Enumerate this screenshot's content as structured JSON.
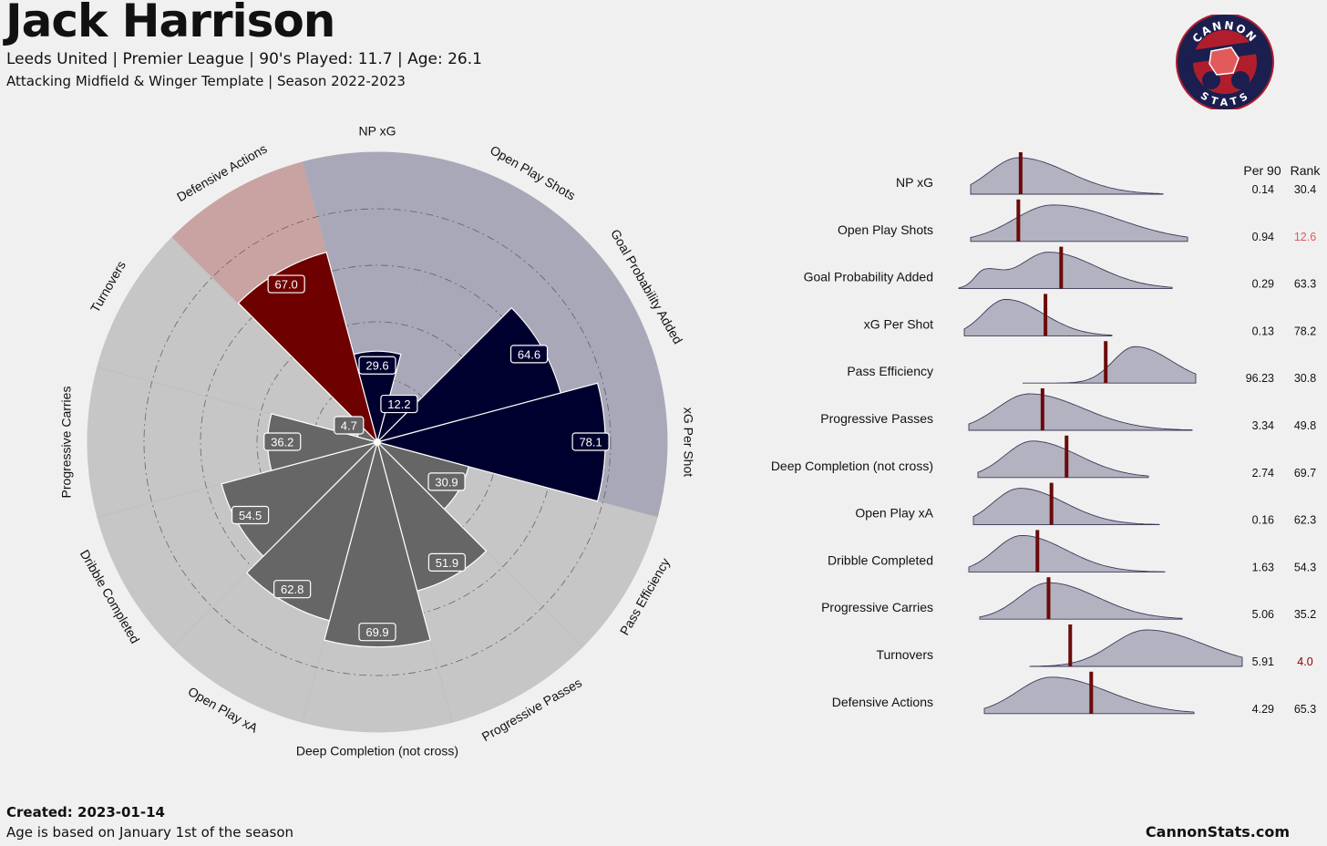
{
  "header": {
    "player": "Jack Harrison",
    "subtitle": "Leeds United  | Premier League | 90's Played: 11.7 | Age: 26.1",
    "template": "Attacking Midfield & Winger Template | Season 2022-2023"
  },
  "footer": {
    "created": "Created: 2023-01-14",
    "age_note": "Age is based on January 1st of the season",
    "site": "CannonStats.com"
  },
  "logo": {
    "top_text": "CANNON",
    "bottom_text": "STATS"
  },
  "colors": {
    "attack": "#00002e",
    "attack_bg": "#a8a8b8",
    "defense": "#6e0000",
    "defense_bg": "#c9a3a1",
    "possession": "#666666",
    "possession_bg": "#c6c6c6",
    "marker": "#6b0a0a",
    "rank_highlight_red": "#e05a5a",
    "rank_highlight_dark": "#8b0000",
    "dist_fill": "#b2b2c0"
  },
  "chart_data": [
    {
      "type": "pizza",
      "ylim": [
        0,
        100
      ],
      "grid": true,
      "categories": [
        "NP xG",
        "Open Play Shots",
        "Goal Probability Added",
        "xG Per Shot",
        "Pass Efficiency",
        "Progressive Passes",
        "Deep Completion (not cross)",
        "Open Play xA",
        "Dribble Completed",
        "Progressive Carries",
        "Turnovers",
        "Defensive Actions"
      ],
      "values": [
        29.6,
        12.2,
        64.6,
        78.1,
        30.9,
        51.9,
        69.9,
        62.8,
        54.5,
        36.2,
        4.7,
        67.0
      ],
      "value_labels": [
        "29.6",
        "12.2",
        "64.6",
        "78.1",
        "30.9",
        "51.9",
        "69.9",
        "62.8",
        "54.5",
        "36.2",
        "4.7",
        "67.0"
      ],
      "groups": [
        "attack",
        "attack",
        "attack",
        "attack",
        "possession",
        "possession",
        "possession",
        "possession",
        "possession",
        "possession",
        "possession",
        "defense"
      ]
    },
    {
      "type": "density-rows",
      "header": {
        "per90": "Per 90",
        "rank": "Rank"
      },
      "metrics": [
        "NP xG",
        "Open Play Shots",
        "Goal Probability Added",
        "xG Per Shot",
        "Pass Efficiency",
        "Progressive Passes",
        "Deep Completion (not cross)",
        "Open Play xA",
        "Dribble Completed",
        "Progressive Carries",
        "Turnovers",
        "Defensive Actions"
      ],
      "per90": [
        "0.14",
        "0.94",
        "0.29",
        "0.13",
        "96.23",
        "3.34",
        "2.74",
        "0.16",
        "1.63",
        "5.06",
        "5.91",
        "4.29"
      ],
      "rank": [
        "30.4",
        "12.6",
        "63.3",
        "78.2",
        "30.8",
        "49.8",
        "69.7",
        "62.3",
        "54.3",
        "35.2",
        "4.0",
        "65.3"
      ],
      "rank_highlight": [
        "",
        "red",
        "",
        "",
        "",
        "",
        "",
        "",
        "",
        "",
        "dark",
        ""
      ]
    }
  ]
}
